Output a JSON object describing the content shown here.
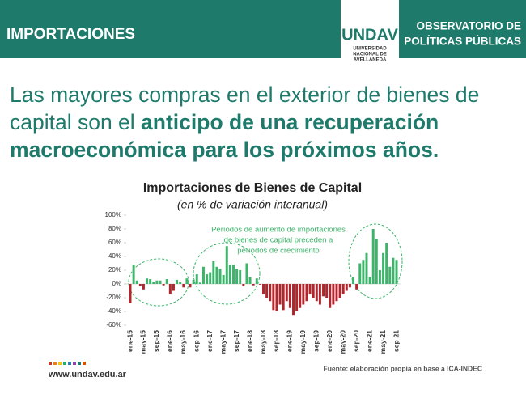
{
  "header": {
    "section": "IMPORTACIONES",
    "logo": "UNDAV",
    "university": [
      "UNIVERSIDAD",
      "NACIONAL DE",
      "AVELLANEDA"
    ],
    "organization": [
      "OBSERVATORIO DE",
      "POLÍTICAS PÚBLICAS"
    ]
  },
  "headline": {
    "regular": "Las mayores compras en el exterior de bienes de capital son el ",
    "bold": "anticipo de una recuperación macroeconómica para los próximos años."
  },
  "chart_data": {
    "type": "bar",
    "title": "Importaciones de Bienes de Capital",
    "subtitle": "(en % de variación interanual)",
    "annotation": [
      "Períodos de aumento de importaciones",
      "de bienes de capital preceden a",
      "períodos de crecimiento"
    ],
    "categories": [
      "ene-15",
      null,
      null,
      null,
      "may-15",
      null,
      null,
      null,
      "sep-15",
      null,
      null,
      null,
      "ene-16",
      null,
      null,
      null,
      "may-16",
      null,
      null,
      null,
      "sep-16",
      null,
      null,
      null,
      "ene-17",
      null,
      null,
      null,
      "may-17",
      null,
      null,
      null,
      "sep-17",
      null,
      null,
      null,
      "ene-18",
      null,
      null,
      null,
      "may-18",
      null,
      null,
      null,
      "sep-18",
      null,
      null,
      null,
      "ene-19",
      null,
      null,
      null,
      "may-19",
      null,
      null,
      null,
      "sep-19",
      null,
      null,
      null,
      "ene-20",
      null,
      null,
      null,
      "may-20",
      null,
      null,
      null,
      "sep-20",
      null,
      null,
      null,
      "ene-21",
      null,
      null,
      null,
      "may-21",
      null,
      null,
      null,
      "sep-21"
    ],
    "values": [
      -28,
      28,
      5,
      -3,
      -8,
      8,
      7,
      3,
      5,
      5,
      -2,
      7,
      -15,
      -10,
      6,
      3,
      -5,
      8,
      -5,
      6,
      14,
      2,
      25,
      14,
      17,
      33,
      25,
      22,
      13,
      55,
      28,
      28,
      22,
      20,
      -3,
      30,
      10,
      -2,
      8,
      -1,
      -15,
      -20,
      -25,
      -38,
      -40,
      -30,
      -38,
      -25,
      -35,
      -45,
      -40,
      -35,
      -30,
      -25,
      -15,
      -20,
      -25,
      -30,
      -18,
      -20,
      -35,
      -30,
      -25,
      -20,
      -15,
      -10,
      -5,
      10,
      -8,
      30,
      35,
      45,
      10,
      80,
      65,
      20,
      45,
      60,
      25,
      38,
      35
    ],
    "color_positive": "#3cb56a",
    "color_negative": "#b3242b",
    "ylim": [
      -60,
      100
    ],
    "yticks": [
      {
        "value": -60,
        "label": "-60%"
      },
      {
        "value": -40,
        "label": "-40%"
      },
      {
        "value": -20,
        "label": "-20%"
      },
      {
        "value": 0,
        "label": "0%"
      },
      {
        "value": 20,
        "label": "20%"
      },
      {
        "value": 40,
        "label": "40%"
      },
      {
        "value": 60,
        "label": "60%"
      },
      {
        "value": 80,
        "label": "80%"
      },
      {
        "value": 100,
        "label": "100%"
      }
    ],
    "grid": false
  },
  "footer": {
    "website": "www.undav.edu.ar",
    "source": "Fuente: elaboración propia en base a ICA-INDEC"
  }
}
